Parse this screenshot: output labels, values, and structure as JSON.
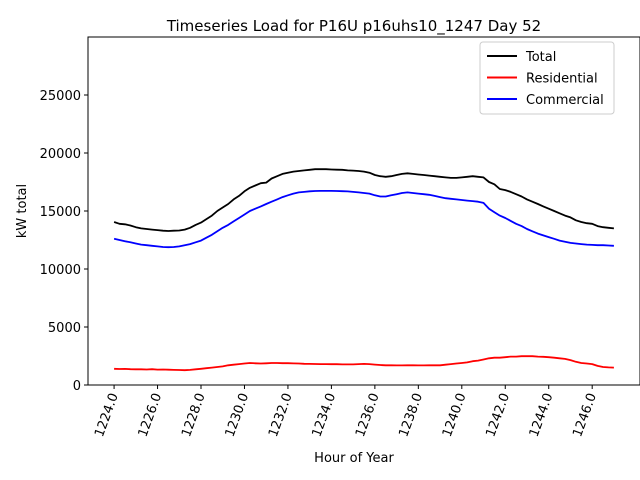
{
  "chart_data": {
    "type": "line",
    "title": "Timeseries Load for P16U p16uhs10_1247  Day 52",
    "xlabel": "Hour of Year",
    "ylabel": "kW total",
    "xlim": [
      1222.8,
      1248.2
    ],
    "ylim": [
      0,
      30000
    ],
    "xticks": [
      1224,
      1226,
      1228,
      1230,
      1232,
      1234,
      1236,
      1238,
      1240,
      1242,
      1244,
      1246
    ],
    "xtick_labels": [
      "1224.0",
      "1226.0",
      "1228.0",
      "1230.0",
      "1232.0",
      "1234.0",
      "1236.0",
      "1238.0",
      "1240.0",
      "1242.0",
      "1244.0",
      "1246.0"
    ],
    "yticks": [
      0,
      5000,
      10000,
      15000,
      20000,
      25000
    ],
    "ytick_labels": [
      "0",
      "5000",
      "10000",
      "15000",
      "20000",
      "25000"
    ],
    "grid": false,
    "legend_position": "top-right",
    "x_start": 1224,
    "x_step": 0.25,
    "series": [
      {
        "name": "Total",
        "color": "#000000",
        "values": [
          14050,
          13900,
          13850,
          13750,
          13600,
          13500,
          13450,
          13400,
          13350,
          13300,
          13280,
          13300,
          13320,
          13400,
          13550,
          13800,
          14000,
          14300,
          14600,
          15000,
          15300,
          15600,
          16000,
          16300,
          16700,
          17000,
          17200,
          17400,
          17450,
          17800,
          18000,
          18200,
          18300,
          18400,
          18450,
          18500,
          18550,
          18600,
          18600,
          18600,
          18580,
          18560,
          18550,
          18500,
          18480,
          18450,
          18400,
          18300,
          18100,
          18000,
          17950,
          18000,
          18100,
          18200,
          18250,
          18200,
          18150,
          18100,
          18050,
          18000,
          17950,
          17900,
          17850,
          17850,
          17900,
          17950,
          18000,
          17950,
          17900,
          17500,
          17300,
          16900,
          16800,
          16650,
          16450,
          16250,
          16000,
          15800,
          15600,
          15400,
          15200,
          15000,
          14800,
          14600,
          14450,
          14200,
          14050,
          13950,
          13900,
          13700,
          13600,
          13550,
          13500
        ]
      },
      {
        "name": "Residential",
        "color": "#ff0000",
        "values": [
          1400,
          1380,
          1390,
          1360,
          1350,
          1350,
          1340,
          1360,
          1330,
          1340,
          1320,
          1300,
          1290,
          1280,
          1300,
          1350,
          1400,
          1450,
          1500,
          1550,
          1600,
          1700,
          1750,
          1800,
          1850,
          1900,
          1870,
          1850,
          1870,
          1900,
          1900,
          1880,
          1880,
          1860,
          1850,
          1830,
          1820,
          1810,
          1800,
          1800,
          1790,
          1790,
          1780,
          1780,
          1780,
          1800,
          1820,
          1800,
          1760,
          1720,
          1700,
          1700,
          1690,
          1690,
          1700,
          1700,
          1690,
          1690,
          1700,
          1700,
          1700,
          1750,
          1800,
          1850,
          1900,
          1950,
          2050,
          2100,
          2200,
          2300,
          2350,
          2350,
          2400,
          2450,
          2450,
          2480,
          2480,
          2480,
          2450,
          2430,
          2400,
          2350,
          2300,
          2250,
          2150,
          2000,
          1900,
          1850,
          1800,
          1650,
          1550,
          1520,
          1500
        ]
      },
      {
        "name": "Commercial",
        "color": "#0000ff",
        "values": [
          12600,
          12500,
          12400,
          12300,
          12200,
          12100,
          12050,
          12000,
          11950,
          11900,
          11880,
          11900,
          11950,
          12050,
          12150,
          12300,
          12450,
          12700,
          12950,
          13250,
          13550,
          13800,
          14100,
          14400,
          14700,
          15000,
          15200,
          15400,
          15600,
          15800,
          16000,
          16200,
          16350,
          16500,
          16600,
          16650,
          16700,
          16720,
          16730,
          16730,
          16730,
          16720,
          16710,
          16690,
          16650,
          16600,
          16550,
          16500,
          16350,
          16250,
          16250,
          16350,
          16450,
          16550,
          16600,
          16550,
          16500,
          16450,
          16400,
          16300,
          16200,
          16100,
          16050,
          16000,
          15950,
          15900,
          15850,
          15800,
          15700,
          15200,
          14900,
          14600,
          14400,
          14150,
          13900,
          13700,
          13450,
          13250,
          13050,
          12900,
          12750,
          12600,
          12450,
          12350,
          12250,
          12200,
          12150,
          12100,
          12080,
          12050,
          12050,
          12030,
          12000
        ]
      }
    ]
  }
}
